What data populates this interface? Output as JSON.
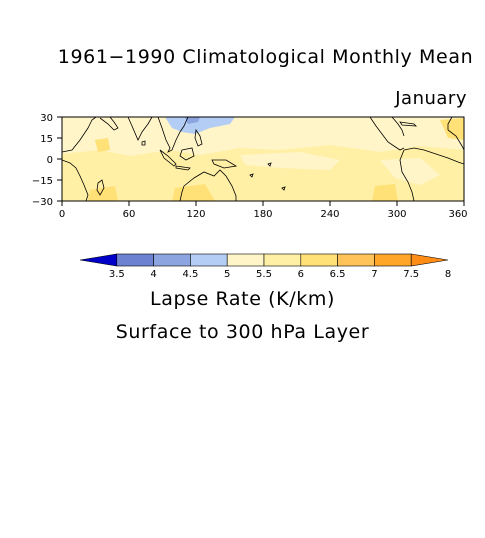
{
  "title": "1961−1990 Climatological Monthly Mean",
  "month": "January",
  "units_label": "Lapse Rate (K/km)",
  "layer_label": "Surface to 300 hPa Layer",
  "map": {
    "x_ticks": [
      "0",
      "60",
      "120",
      "180",
      "240",
      "300",
      "360"
    ],
    "y_ticks": [
      "30",
      "15",
      "0",
      "−15",
      "−30"
    ],
    "lon_range": [
      0,
      360
    ],
    "lat_range": [
      -30,
      30
    ]
  },
  "colorbar": {
    "labels": [
      "3.5",
      "4",
      "4.5",
      "5",
      "5.5",
      "6",
      "6.5",
      "7",
      "7.5",
      "8"
    ],
    "colors": [
      "#0000c8",
      "#6e82d2",
      "#8ca5e1",
      "#b4cdf5",
      "#fff5c8",
      "#fff0a5",
      "#ffe178",
      "#ffc35a",
      "#ffa528",
      "#ff8c14"
    ]
  }
}
